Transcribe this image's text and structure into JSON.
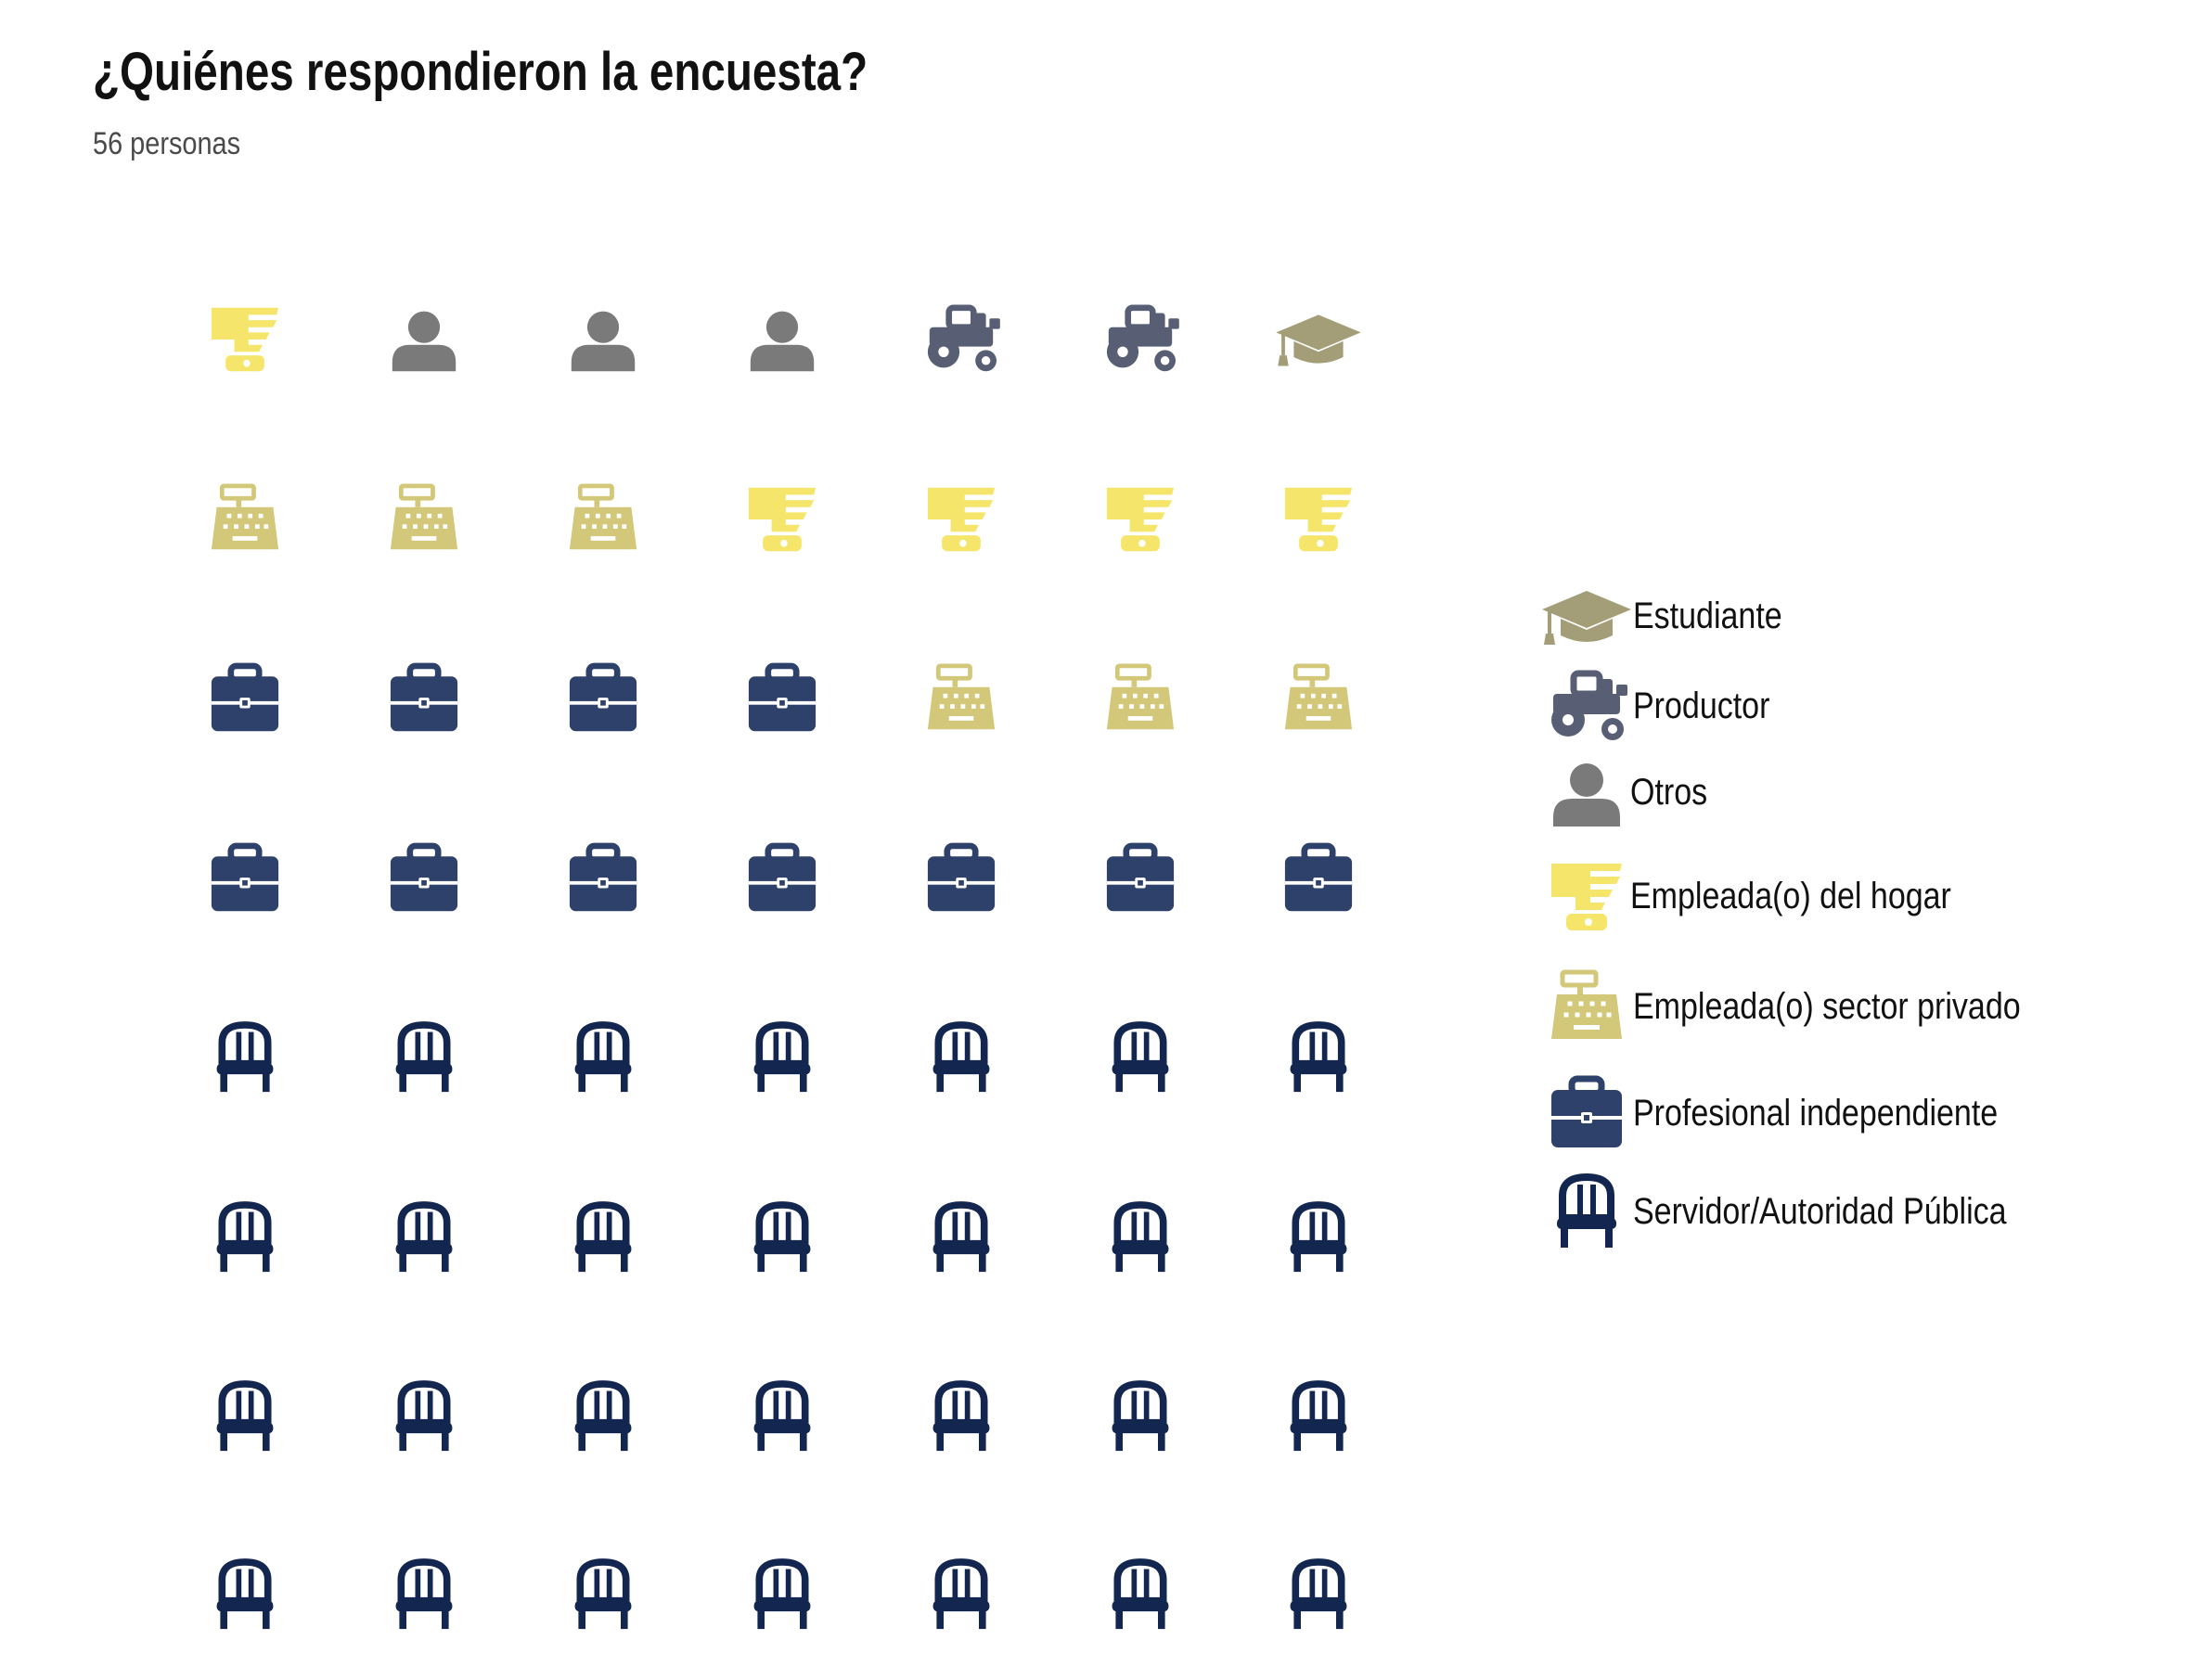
{
  "title": "¿Quiénes respondieron la encuesta?",
  "subtitle": "56 personas",
  "chart_data": {
    "type": "waffle",
    "title": "¿Quiénes respondieron la encuesta?",
    "subtitle": "56 personas",
    "total": 56,
    "columns": 7,
    "rows": 8,
    "legend_position": "right",
    "categories": [
      {
        "key": "estudiante",
        "label": "Estudiante",
        "count": 1,
        "color": "#a39e77",
        "icon": "graduation-cap-icon"
      },
      {
        "key": "productor",
        "label": "Productor",
        "count": 2,
        "color": "#585e73",
        "icon": "tractor-icon"
      },
      {
        "key": "otros",
        "label": "Otros",
        "count": 3,
        "color": "#7a7a7a",
        "icon": "user-icon"
      },
      {
        "key": "hogar",
        "label": "Empleada(o) del hogar",
        "count": 5,
        "color": "#f5e66b",
        "icon": "blender-icon"
      },
      {
        "key": "privado",
        "label": "Empleada(o) sector privado",
        "count": 6,
        "color": "#d3c779",
        "icon": "cash-register-icon"
      },
      {
        "key": "independiente",
        "label": "Profesional independiente",
        "count": 11,
        "color": "#2e416b",
        "icon": "briefcase-icon"
      },
      {
        "key": "servidor",
        "label": "Servidor/Autoridad Pública",
        "count": 28,
        "color": "#13264f",
        "icon": "chair-icon"
      }
    ],
    "grid": [
      [
        "hogar",
        "otros",
        "otros",
        "otros",
        "productor",
        "productor",
        "estudiante"
      ],
      [
        "privado",
        "privado",
        "privado",
        "hogar",
        "hogar",
        "hogar",
        "hogar"
      ],
      [
        "independiente",
        "independiente",
        "independiente",
        "independiente",
        "privado",
        "privado",
        "privado"
      ],
      [
        "independiente",
        "independiente",
        "independiente",
        "independiente",
        "independiente",
        "independiente",
        "independiente"
      ],
      [
        "servidor",
        "servidor",
        "servidor",
        "servidor",
        "servidor",
        "servidor",
        "servidor"
      ],
      [
        "servidor",
        "servidor",
        "servidor",
        "servidor",
        "servidor",
        "servidor",
        "servidor"
      ],
      [
        "servidor",
        "servidor",
        "servidor",
        "servidor",
        "servidor",
        "servidor",
        "servidor"
      ],
      [
        "servidor",
        "servidor",
        "servidor",
        "servidor",
        "servidor",
        "servidor",
        "servidor"
      ]
    ]
  }
}
